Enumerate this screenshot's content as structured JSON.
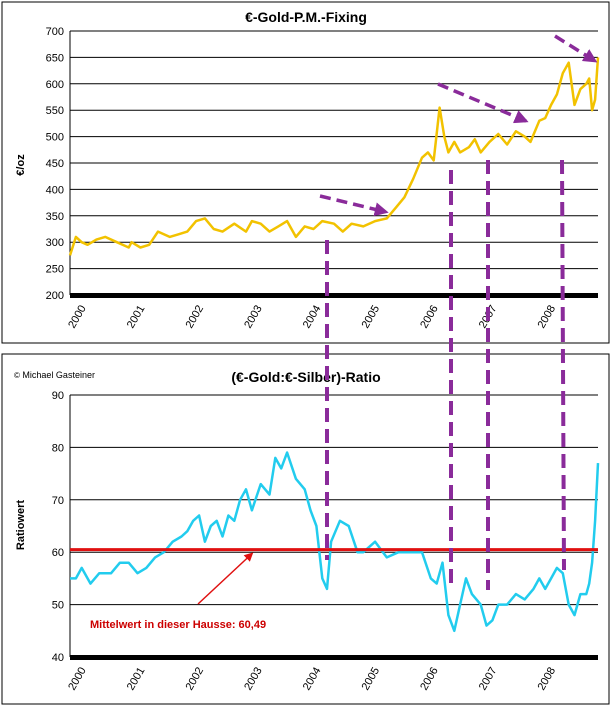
{
  "chart_data": [
    {
      "type": "line",
      "title": "€-Gold-P.M.-Fixing",
      "ylabel": "€/oz",
      "xlabel": "",
      "ylim": [
        200,
        700
      ],
      "yticks": [
        200,
        250,
        300,
        350,
        400,
        450,
        500,
        550,
        600,
        650,
        700
      ],
      "xlim": [
        2000,
        2009
      ],
      "categories": [
        "2000",
        "2001",
        "2002",
        "2003",
        "2004",
        "2005",
        "2006",
        "2007",
        "2008"
      ],
      "series": [
        {
          "name": "€-Gold-P.M.-Fixing",
          "color": "#f2c200",
          "x": [
            2000.0,
            2000.1,
            2000.2,
            2000.3,
            2000.45,
            2000.6,
            2000.8,
            2001.0,
            2001.05,
            2001.2,
            2001.35,
            2001.5,
            2001.7,
            2001.85,
            2002.0,
            2002.15,
            2002.3,
            2002.45,
            2002.6,
            2002.8,
            2003.0,
            2003.1,
            2003.25,
            2003.4,
            2003.55,
            2003.7,
            2003.85,
            2004.0,
            2004.15,
            2004.3,
            2004.5,
            2004.65,
            2004.8,
            2005.0,
            2005.2,
            2005.4,
            2005.55,
            2005.7,
            2005.85,
            2006.0,
            2006.1,
            2006.2,
            2006.3,
            2006.38,
            2006.45,
            2006.55,
            2006.65,
            2006.8,
            2006.9,
            2007.0,
            2007.15,
            2007.3,
            2007.45,
            2007.6,
            2007.75,
            2007.85,
            2008.0,
            2008.1,
            2008.2,
            2008.3,
            2008.4,
            2008.5,
            2008.6,
            2008.7,
            2008.8,
            2008.85,
            2008.9,
            2008.95,
            2009.0
          ],
          "values": [
            275,
            310,
            300,
            295,
            305,
            310,
            300,
            290,
            300,
            290,
            295,
            320,
            310,
            315,
            320,
            340,
            345,
            325,
            320,
            335,
            320,
            340,
            335,
            320,
            330,
            340,
            310,
            330,
            325,
            340,
            335,
            320,
            335,
            330,
            340,
            345,
            365,
            385,
            420,
            460,
            470,
            455,
            555,
            500,
            470,
            490,
            470,
            480,
            495,
            470,
            490,
            505,
            485,
            510,
            500,
            490,
            530,
            535,
            560,
            580,
            620,
            640,
            560,
            590,
            600,
            610,
            550,
            570,
            650
          ]
        }
      ],
      "trend_arrows": 3,
      "drop_lines": 4
    },
    {
      "type": "line",
      "title": "(€-Gold:€-Silber)-Ratio",
      "ylabel": "Ratiowert",
      "xlabel": "",
      "ylim": [
        40,
        90
      ],
      "yticks": [
        40,
        50,
        60,
        70,
        80,
        90
      ],
      "xlim": [
        2000,
        2009
      ],
      "categories": [
        "2000",
        "2001",
        "2002",
        "2003",
        "2004",
        "2005",
        "2006",
        "2007",
        "2008"
      ],
      "series": [
        {
          "name": "(€-Gold:€-Silber)-Ratio",
          "color": "#22ccee",
          "x": [
            2000.0,
            2000.1,
            2000.2,
            2000.35,
            2000.5,
            2000.7,
            2000.85,
            2001.0,
            2001.15,
            2001.3,
            2001.45,
            2001.6,
            2001.75,
            2001.9,
            2002.0,
            2002.1,
            2002.2,
            2002.3,
            2002.4,
            2002.5,
            2002.6,
            2002.7,
            2002.8,
            2002.9,
            2003.0,
            2003.1,
            2003.25,
            2003.4,
            2003.5,
            2003.6,
            2003.7,
            2003.85,
            2004.0,
            2004.1,
            2004.2,
            2004.3,
            2004.38,
            2004.45,
            2004.6,
            2004.75,
            2004.9,
            2005.0,
            2005.2,
            2005.4,
            2005.6,
            2005.8,
            2006.0,
            2006.15,
            2006.25,
            2006.35,
            2006.45,
            2006.55,
            2006.65,
            2006.75,
            2006.85,
            2007.0,
            2007.1,
            2007.2,
            2007.3,
            2007.45,
            2007.6,
            2007.75,
            2007.9,
            2008.0,
            2008.1,
            2008.2,
            2008.3,
            2008.4,
            2008.5,
            2008.6,
            2008.7,
            2008.8,
            2008.85,
            2008.9,
            2008.95,
            2009.0
          ],
          "values": [
            55,
            55,
            57,
            54,
            56,
            56,
            58,
            58,
            56,
            57,
            59,
            60,
            62,
            63,
            64,
            66,
            67,
            62,
            65,
            66,
            63,
            67,
            66,
            70,
            72,
            68,
            73,
            71,
            78,
            76,
            79,
            74,
            72,
            68,
            65,
            55,
            53,
            62,
            66,
            65,
            60,
            60,
            62,
            59,
            60,
            60,
            60,
            55,
            54,
            58,
            48,
            45,
            50,
            55,
            52,
            50,
            46,
            47,
            50,
            50,
            52,
            51,
            53,
            55,
            53,
            55,
            57,
            56,
            50,
            48,
            52,
            52,
            54,
            58,
            66,
            77
          ]
        }
      ],
      "reference_line": {
        "value": 60.49,
        "color": "#e01010",
        "label": "Mittelwert in dieser Hausse: 60,49"
      },
      "copyright": "Michael Gasteiner"
    }
  ]
}
